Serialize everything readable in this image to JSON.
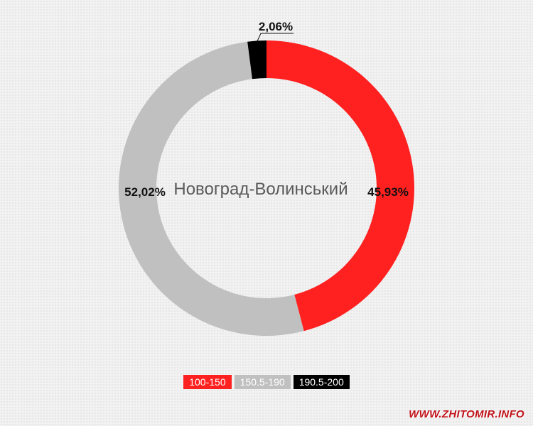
{
  "chart_data": {
    "type": "donut",
    "title": "Новоград-Волинський",
    "categories": [
      "100-150",
      "150.5-190",
      "190.5-200"
    ],
    "values": [
      45.93,
      52.02,
      2.06
    ],
    "value_labels": [
      "45,93%",
      "52,02%",
      "2,06%"
    ],
    "colors": [
      "#ff2020",
      "#c0c0c0",
      "#000000"
    ],
    "legend_position": "bottom",
    "start_angle_deg": 0,
    "direction": "clockwise"
  },
  "watermark": "WWW.ZHITOMIR.INFO"
}
